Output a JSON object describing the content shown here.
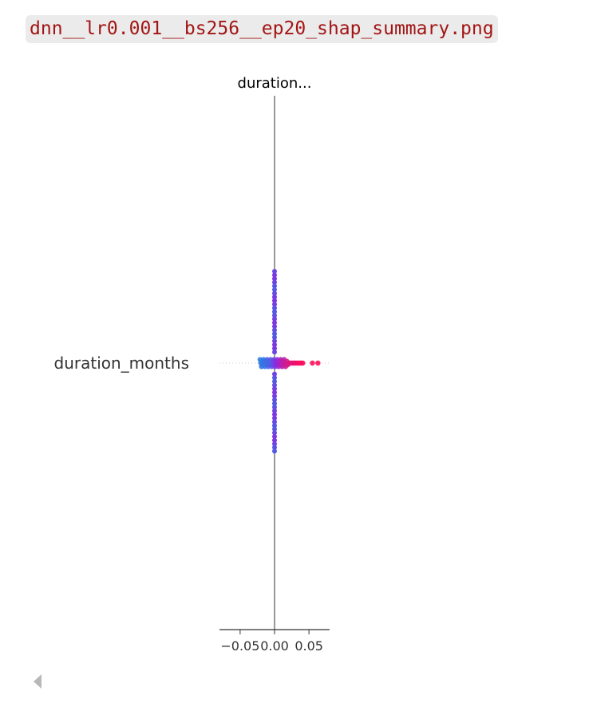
{
  "file": {
    "name": "dnn__lr0.001__bs256__ep20_shap_summary.png"
  },
  "chart_data": {
    "type": "scatter",
    "title": "duration...",
    "xlabel": "",
    "ylabel": "",
    "features": [
      "duration_months"
    ],
    "xticks": [
      -0.05,
      0.0,
      0.05
    ],
    "xtick_labels": [
      "−0.05",
      "0.00",
      "0.05"
    ],
    "xlim": [
      -0.08,
      0.08
    ],
    "colors": {
      "low": "#1e88e5",
      "high": "#ff0d57",
      "axis": "#999999",
      "text": "#333333"
    },
    "series": [
      {
        "feature": "duration_months",
        "points": [
          {
            "x": -0.021,
            "v": 0.05
          },
          {
            "x": -0.02,
            "v": 0.08
          },
          {
            "x": -0.019,
            "v": 0.1
          },
          {
            "x": -0.018,
            "v": 0.06
          },
          {
            "x": -0.017,
            "v": 0.12
          },
          {
            "x": -0.016,
            "v": 0.09
          },
          {
            "x": -0.015,
            "v": 0.14
          },
          {
            "x": -0.014,
            "v": 0.11
          },
          {
            "x": -0.013,
            "v": 0.15
          },
          {
            "x": -0.012,
            "v": 0.13
          },
          {
            "x": -0.011,
            "v": 0.18
          },
          {
            "x": -0.01,
            "v": 0.16
          },
          {
            "x": -0.009,
            "v": 0.2
          },
          {
            "x": -0.008,
            "v": 0.19
          },
          {
            "x": -0.007,
            "v": 0.22
          },
          {
            "x": -0.006,
            "v": 0.24
          },
          {
            "x": -0.005,
            "v": 0.21
          },
          {
            "x": -0.004,
            "v": 0.27
          },
          {
            "x": -0.003,
            "v": 0.3
          },
          {
            "x": -0.002,
            "v": 0.33
          },
          {
            "x": -0.001,
            "v": 0.36
          },
          {
            "x": 0.0,
            "v": 0.4
          },
          {
            "x": 0.001,
            "v": 0.45
          },
          {
            "x": 0.002,
            "v": 0.48
          },
          {
            "x": 0.003,
            "v": 0.5
          },
          {
            "x": 0.004,
            "v": 0.52
          },
          {
            "x": 0.005,
            "v": 0.55
          },
          {
            "x": 0.006,
            "v": 0.58
          },
          {
            "x": 0.007,
            "v": 0.6
          },
          {
            "x": 0.008,
            "v": 0.62
          },
          {
            "x": 0.009,
            "v": 0.64
          },
          {
            "x": 0.01,
            "v": 0.66
          },
          {
            "x": 0.011,
            "v": 0.68
          },
          {
            "x": 0.012,
            "v": 0.7
          },
          {
            "x": 0.013,
            "v": 0.72
          },
          {
            "x": 0.014,
            "v": 0.74
          },
          {
            "x": 0.015,
            "v": 0.76
          },
          {
            "x": 0.016,
            "v": 0.78
          },
          {
            "x": 0.018,
            "v": 0.8
          },
          {
            "x": 0.019,
            "v": 0.82
          },
          {
            "x": 0.021,
            "v": 0.84
          },
          {
            "x": 0.023,
            "v": 0.86
          },
          {
            "x": 0.025,
            "v": 0.88
          },
          {
            "x": 0.027,
            "v": 0.9
          },
          {
            "x": 0.029,
            "v": 0.91
          },
          {
            "x": 0.031,
            "v": 0.93
          },
          {
            "x": 0.033,
            "v": 0.94
          },
          {
            "x": 0.035,
            "v": 0.95
          },
          {
            "x": 0.037,
            "v": 0.96
          },
          {
            "x": 0.039,
            "v": 0.97
          },
          {
            "x": 0.041,
            "v": 0.98
          },
          {
            "x": 0.055,
            "v": 0.99
          },
          {
            "x": 0.063,
            "v": 1.0
          }
        ],
        "column_count": 50
      }
    ],
    "legend": "none",
    "grid": false
  }
}
